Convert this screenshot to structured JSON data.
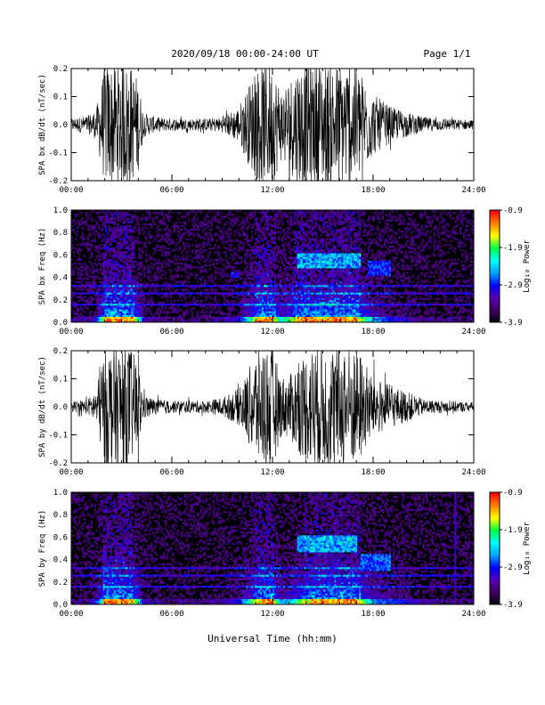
{
  "header": {
    "title": "2020/09/18  00:00-24:00 UT",
    "page": "Page 1/1"
  },
  "xlabel": "Universal Time (hh:mm)",
  "colors": {
    "waveform": "#000000",
    "spectrogram_background": "#000000",
    "colormap": [
      "#000000",
      "#3a0060",
      "#5a00b0",
      "#0000ff",
      "#00a0ff",
      "#00ffff",
      "#00ff40",
      "#ffff00",
      "#ff8000",
      "#ff0000"
    ]
  },
  "chart_data": [
    {
      "type": "line",
      "name": "bx-waveform",
      "ylabel": "SPA bx dB/dt (nT/sec)",
      "xlim": [
        0,
        24
      ],
      "ylim": [
        -0.2,
        0.2
      ],
      "xticks": [
        "00:00",
        "06:00",
        "12:00",
        "18:00",
        "24:00"
      ],
      "yticks": [
        "-0.2",
        "-0.1",
        "0.0",
        "0.1",
        "0.2"
      ],
      "envelope": {
        "hours": [
          0,
          1,
          1.5,
          2,
          2.5,
          3,
          3.5,
          4,
          4.3,
          5,
          6,
          8,
          9,
          10,
          10.5,
          11,
          11.5,
          12,
          12.5,
          13,
          13.5,
          14,
          14.5,
          15,
          15.5,
          16,
          16.5,
          17,
          17.5,
          18,
          19,
          20,
          21,
          22,
          24
        ],
        "amplitude": [
          0.02,
          0.03,
          0.05,
          0.2,
          0.2,
          0.2,
          0.2,
          0.15,
          0.04,
          0.025,
          0.02,
          0.02,
          0.025,
          0.06,
          0.12,
          0.18,
          0.2,
          0.2,
          0.12,
          0.15,
          0.2,
          0.2,
          0.2,
          0.2,
          0.2,
          0.2,
          0.2,
          0.2,
          0.15,
          0.1,
          0.06,
          0.04,
          0.025,
          0.02,
          0.015
        ]
      }
    },
    {
      "type": "heatmap",
      "name": "bx-spectrogram",
      "ylabel": "SPA bx Freq (Hz)",
      "colorbar_label": "Log₁₀ Power",
      "colorbar_ticks": [
        "-0.9",
        "-1.9",
        "-2.9",
        "-3.9"
      ],
      "zlim": [
        -3.9,
        -0.9
      ],
      "xlim": [
        0,
        24
      ],
      "ylim": [
        0.0,
        1.0
      ],
      "xticks": [
        "00:00",
        "06:00",
        "12:00",
        "18:00",
        "24:00"
      ],
      "yticks": [
        "0.0",
        "0.2",
        "0.4",
        "0.6",
        "0.8",
        "1.0"
      ],
      "bands": [
        {
          "t0": 13.5,
          "t1": 17.3,
          "f0": 0.48,
          "f1": 0.62,
          "level": -2.4
        },
        {
          "t0": 17.7,
          "t1": 19.1,
          "f0": 0.42,
          "f1": 0.55,
          "level": -2.6
        },
        {
          "t0": 9.5,
          "t1": 10.0,
          "f0": 0.4,
          "f1": 0.45,
          "level": -2.7
        }
      ]
    },
    {
      "type": "line",
      "name": "by-waveform",
      "ylabel": "SPA by dB/dt (nT/sec)",
      "xlim": [
        0,
        24
      ],
      "ylim": [
        -0.2,
        0.2
      ],
      "xticks": [
        "00:00",
        "06:00",
        "12:00",
        "18:00",
        "24:00"
      ],
      "yticks": [
        "-0.2",
        "-0.1",
        "0.0",
        "0.1",
        "0.2"
      ],
      "envelope": {
        "hours": [
          0,
          1,
          1.5,
          2,
          2.5,
          3,
          3.5,
          4,
          4.3,
          5,
          6,
          8,
          9,
          10,
          10.5,
          11,
          11.5,
          12,
          12.5,
          13,
          13.5,
          14,
          14.5,
          15,
          15.5,
          16,
          16.5,
          17,
          17.5,
          18,
          19,
          20,
          21,
          22,
          24
        ],
        "amplitude": [
          0.015,
          0.025,
          0.06,
          0.2,
          0.2,
          0.2,
          0.2,
          0.14,
          0.04,
          0.025,
          0.02,
          0.02,
          0.03,
          0.06,
          0.11,
          0.18,
          0.2,
          0.2,
          0.1,
          0.1,
          0.15,
          0.18,
          0.2,
          0.2,
          0.2,
          0.2,
          0.2,
          0.2,
          0.15,
          0.1,
          0.07,
          0.05,
          0.025,
          0.02,
          0.015
        ]
      }
    },
    {
      "type": "heatmap",
      "name": "by-spectrogram",
      "ylabel": "SPA by Freq (Hz)",
      "colorbar_label": "Log₁₀ Power",
      "colorbar_ticks": [
        "-0.9",
        "-1.9",
        "-2.9",
        "-3.9"
      ],
      "zlim": [
        -3.9,
        -0.9
      ],
      "xlim": [
        0,
        24
      ],
      "ylim": [
        0.0,
        1.0
      ],
      "xticks": [
        "00:00",
        "06:00",
        "12:00",
        "18:00",
        "24:00"
      ],
      "yticks": [
        "0.0",
        "0.2",
        "0.4",
        "0.6",
        "0.8",
        "1.0"
      ],
      "bands": [
        {
          "t0": 13.5,
          "t1": 17.0,
          "f0": 0.46,
          "f1": 0.62,
          "level": -2.4
        },
        {
          "t0": 17.3,
          "t1": 19.0,
          "f0": 0.3,
          "f1": 0.45,
          "level": -2.5
        },
        {
          "t0": 22.8,
          "t1": 22.9,
          "f0": 0.0,
          "f1": 1.0,
          "level": -2.9
        }
      ]
    }
  ]
}
